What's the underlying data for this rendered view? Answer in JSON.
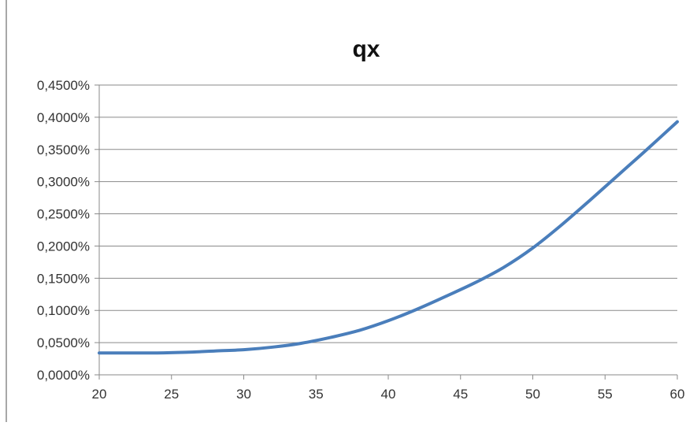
{
  "chart_data": {
    "type": "line",
    "title": "qx",
    "xlabel": "",
    "ylabel": "",
    "xlim": [
      20,
      60
    ],
    "ylim": [
      0,
      0.45
    ],
    "x_ticks": [
      20,
      25,
      30,
      35,
      40,
      45,
      50,
      55,
      60
    ],
    "x_tick_labels": [
      "20",
      "25",
      "30",
      "35",
      "40",
      "45",
      "50",
      "55",
      "60"
    ],
    "y_ticks": [
      0,
      0.05,
      0.1,
      0.15,
      0.2,
      0.25,
      0.3,
      0.35,
      0.4,
      0.45
    ],
    "y_tick_labels": [
      "0,0000%",
      "0,0500%",
      "0,1000%",
      "0,1500%",
      "0,2000%",
      "0,2500%",
      "0,3000%",
      "0,3500%",
      "0,4000%",
      "0,4500%"
    ],
    "grid": "horizontal",
    "legend": "none",
    "series_color": "#4a7ebb",
    "series": [
      {
        "x": [
          20,
          22,
          24,
          26,
          28,
          30,
          32,
          34,
          36,
          38,
          40,
          42,
          44,
          46,
          48,
          50,
          52,
          54,
          56,
          58,
          60
        ],
        "values": [
          0.034,
          0.034,
          0.034,
          0.035,
          0.037,
          0.039,
          0.043,
          0.049,
          0.058,
          0.069,
          0.084,
          0.102,
          0.122,
          0.143,
          0.167,
          0.197,
          0.233,
          0.272,
          0.312,
          0.352,
          0.393
        ]
      }
    ]
  }
}
